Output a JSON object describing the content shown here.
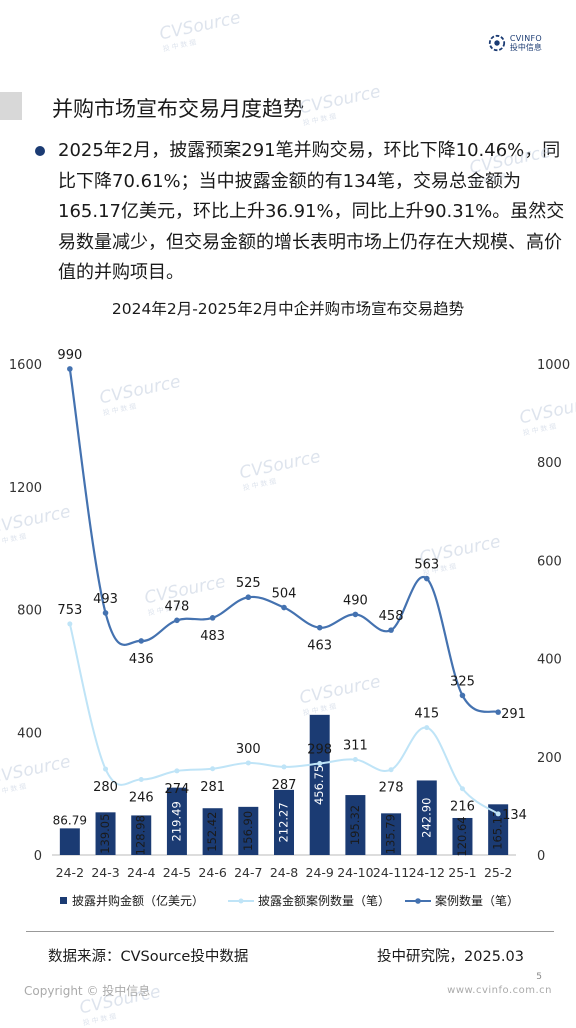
{
  "header": {
    "logo_line1": "CVINFO",
    "logo_line2": "投中信息"
  },
  "section": {
    "title": "并购市场宣布交易月度趋势"
  },
  "bullet": {
    "text": "2025年2月，披露预案291笔并购交易，环比下降10.46%，同比下降70.61%；当中披露金额的有134笔，交易总金额为165.17亿美元，环比上升36.91%，同比上升90.31%。虽然交易数量减少，但交易金额的增长表明市场上仍存在大规模、高价值的并购项目。"
  },
  "footer": {
    "source": "数据来源：CVSource投中数据",
    "institute": "投中研究院，2025.03",
    "page": "5",
    "copyright": "Copyright © 投中信息",
    "website": "www.cvinfo.com.cn"
  },
  "watermark": {
    "main": "CVSource",
    "sub": "投中数据"
  },
  "chart_data": {
    "type": "bar",
    "title": "2024年2月-2025年2月中企并购市场宣布交易趋势",
    "categories": [
      "24-2",
      "24-3",
      "24-4",
      "24-5",
      "24-6",
      "24-7",
      "24-8",
      "24-9",
      "24-10",
      "24-11",
      "24-12",
      "25-1",
      "25-2"
    ],
    "series": [
      {
        "name": "披露并购金额（亿美元）",
        "type": "bar",
        "axis": "left",
        "values": [
          86.79,
          139.05,
          128.98,
          219.49,
          152.42,
          156.9,
          212.27,
          456.75,
          195.32,
          135.79,
          242.9,
          120.64,
          165.17
        ],
        "labels": [
          "86.79",
          "139.05",
          "128.98",
          "219.49",
          "152.42",
          "156.90",
          "212.27",
          "456.75",
          "195.32",
          "135.79",
          "242.90",
          "120.64",
          "165.17"
        ],
        "color": "#1b3b73"
      },
      {
        "name": "披露金额案例数量（笔）",
        "type": "line",
        "axis": "left",
        "values": [
          753,
          280,
          246,
          274,
          281,
          300,
          287,
          298,
          311,
          278,
          415,
          216,
          134
        ],
        "color": "#bfe4f7"
      },
      {
        "name": "案例数量（笔）",
        "type": "line",
        "axis": "right",
        "values": [
          990,
          493,
          436,
          478,
          483,
          525,
          504,
          463,
          490,
          458,
          563,
          325,
          291
        ],
        "color": "#4472b0"
      }
    ],
    "yleft": {
      "ticks": [
        "0",
        "400",
        "800",
        "1200",
        "1600"
      ],
      "lim": [
        0,
        1600
      ]
    },
    "yright": {
      "ticks": [
        "0",
        "200",
        "400",
        "600",
        "800",
        "1000"
      ],
      "lim": [
        0,
        1000
      ]
    },
    "legend": "bottom"
  }
}
